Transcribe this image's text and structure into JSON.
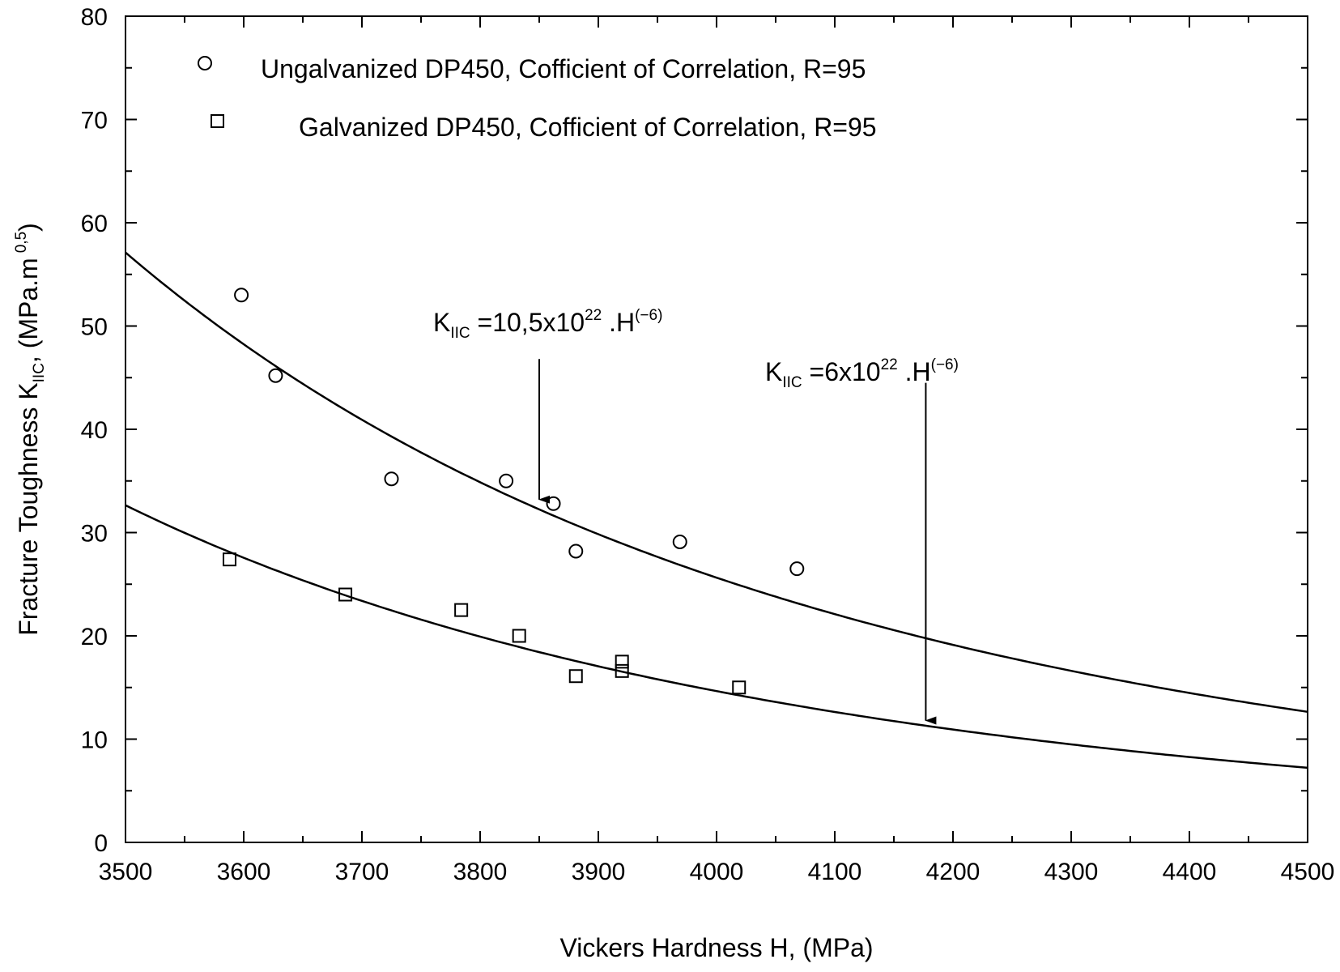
{
  "chart_data": {
    "type": "scatter",
    "title": "",
    "xlabel": "Vickers Hardness H, (MPa)",
    "ylabel": {
      "main": "Fracture Toughness K",
      "sub": "IIC",
      "after": ", (MPa.m",
      "sup": "0,5",
      "close": ")"
    },
    "xlim": [
      3500,
      4500
    ],
    "ylim": [
      0,
      80
    ],
    "x_ticks": [
      "3500",
      "3600",
      "3700",
      "3800",
      "3900",
      "4000",
      "4100",
      "4200",
      "4300",
      "4400",
      "4500"
    ],
    "y_ticks": [
      "0",
      "10",
      "20",
      "30",
      "40",
      "50",
      "60",
      "70",
      "80"
    ],
    "grid": false,
    "legend_position": "top-left",
    "series": [
      {
        "name": "Ungalvanized DP450, Cofficient of Correlation, R=95",
        "marker": "circle",
        "points": [
          {
            "x": 3598,
            "y": 53.0
          },
          {
            "x": 3627,
            "y": 45.2
          },
          {
            "x": 3725,
            "y": 35.2
          },
          {
            "x": 3822,
            "y": 35.0
          },
          {
            "x": 3862,
            "y": 32.8
          },
          {
            "x": 3881,
            "y": 28.2
          },
          {
            "x": 3969,
            "y": 29.1
          },
          {
            "x": 4068,
            "y": 26.5
          }
        ],
        "fit": {
          "coefficient": 1.05e+23,
          "exponent": -6
        }
      },
      {
        "name": "Galvanized DP450, Cofficient of Correlation, R=95",
        "marker": "square",
        "points": [
          {
            "x": 3588,
            "y": 27.4
          },
          {
            "x": 3686,
            "y": 24.0
          },
          {
            "x": 3784,
            "y": 22.5
          },
          {
            "x": 3833,
            "y": 20.0
          },
          {
            "x": 3881,
            "y": 16.1
          },
          {
            "x": 3920,
            "y": 17.5
          },
          {
            "x": 3920,
            "y": 16.6
          },
          {
            "x": 4019,
            "y": 15.0
          }
        ],
        "fit": {
          "coefficient": 6e+22,
          "exponent": -6
        }
      }
    ],
    "annotations": [
      {
        "main": "K",
        "sub": "IIC",
        "mid": " =10,5x10",
        "sup": "22",
        "tail": " .H",
        "sup2": "(−6)",
        "arrow_x": 3850,
        "arrow_y_start": 46.8,
        "arrow_y_end": 33.2
      },
      {
        "main": "K",
        "sub": "IIC",
        "mid": " =6x10",
        "sup": "22",
        "tail": " .H",
        "sup2": "(−6)",
        "arrow_x": 4177,
        "arrow_y_start": 44.5,
        "arrow_y_end": 11.8
      }
    ]
  }
}
